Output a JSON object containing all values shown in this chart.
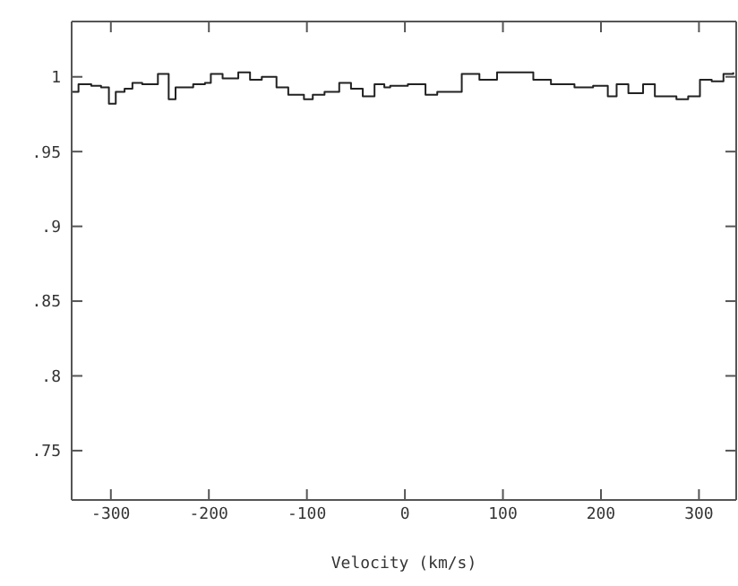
{
  "chart_data": {
    "type": "step",
    "xlabel": "Velocity (km/s)",
    "x": [
      -340,
      -333,
      -320,
      -310,
      -302,
      -295,
      -286,
      -278,
      -268,
      -252,
      -241,
      -234,
      -216,
      -204,
      -198,
      -186,
      -170,
      -158,
      -146,
      -131,
      -119,
      -103,
      -94,
      -82,
      -67,
      -55,
      -43,
      -31,
      -21,
      -15,
      3,
      21,
      33,
      58,
      76,
      94,
      113,
      131,
      149,
      173,
      192,
      207,
      216,
      228,
      243,
      255,
      277,
      289,
      301,
      313,
      325,
      335
    ],
    "values": [
      0.99,
      0.995,
      0.994,
      0.993,
      0.982,
      0.99,
      0.992,
      0.996,
      0.995,
      1.002,
      0.985,
      0.993,
      0.995,
      0.996,
      1.002,
      0.999,
      1.003,
      0.998,
      1.0,
      0.993,
      0.988,
      0.985,
      0.988,
      0.99,
      0.996,
      0.992,
      0.987,
      0.995,
      0.993,
      0.994,
      0.995,
      0.988,
      0.99,
      1.002,
      0.998,
      1.003,
      1.003,
      0.998,
      0.995,
      0.993,
      0.994,
      0.987,
      0.995,
      0.989,
      0.995,
      0.987,
      0.985,
      0.987,
      0.998,
      0.997,
      1.002,
      1.003
    ],
    "color": "#222222",
    "xlim": [
      -340,
      338
    ],
    "xticks": [
      -300,
      -200,
      -100,
      0,
      100,
      200,
      300
    ],
    "ylim": [
      0.717,
      1.037
    ],
    "yticks": [
      {
        "value": 0.75,
        "label": ".75"
      },
      {
        "value": 0.8,
        "label": ".8"
      },
      {
        "value": 0.85,
        "label": ".85"
      },
      {
        "value": 0.9,
        "label": ".9"
      },
      {
        "value": 0.95,
        "label": ".95"
      },
      1
    ]
  }
}
